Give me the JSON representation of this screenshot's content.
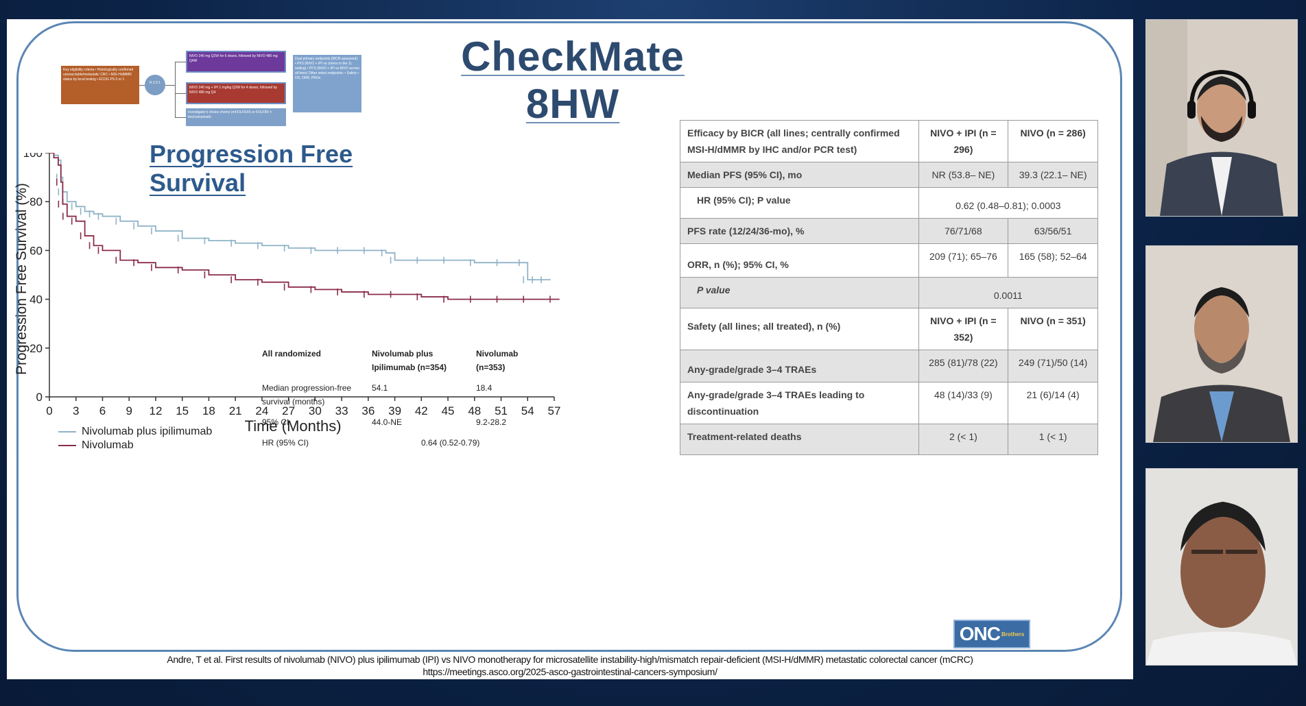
{
  "slide": {
    "title": "CheckMate 8HW",
    "diagram": {
      "eligibility": "Key eligibility criteria • Histologically confirmed unresectable/metastatic CRC • MSI-H/dMMR status by local testing • ECOG PS 0 or 1",
      "randomize": "R 2:2:1",
      "arm1": "NIVO 240 mg Q2W for 6 doses, followed by NIVO 480 mg Q4W",
      "arm2": "NIVO 240 mg + IPI 1 mg/kg Q3W for 4 doses, followed by NIVO 480 mg Q4",
      "arm3": "Investigator's choice chemo (mFOLFOX6 or FOLFIRI ± bev/cetuximab)",
      "endpoints": "Dual primary endpoints (BICR-assessed): • PFS (NIVO + IPI vs chemo in the 1L setting) • PFS (NIVO + IPI vs NIVO across all lines) Other select endpoints: • Safety • OS, ORR, PROs"
    },
    "km": {
      "title": "Progression Free Survival",
      "legend": [
        {
          "label": "Nivolumab plus ipilimumab",
          "color": "#8fb3c7"
        },
        {
          "label": "Nivolumab",
          "color": "#8a2c48"
        }
      ],
      "stats": {
        "header": [
          "All randomized",
          "Nivolumab plus Ipilimumab (n=354)",
          "Nivolumab (n=353)"
        ],
        "median_label": "Median progression-free survival (months)",
        "median_vals": [
          "54.1",
          "18.4"
        ],
        "ci_label": "95% CI",
        "ci_vals": [
          "44.0-NE",
          "9.2-28.2"
        ],
        "hr_label": "HR (95% CI)",
        "hr_val": "0.64 (0.52-0.79)"
      }
    },
    "table": {
      "header": {
        "label": "Efficacy by BICR (all lines; centrally confirmed MSI-H/dMMR by IHC and/or PCR test)",
        "col1": "NIVO + IPI (n = 296)",
        "col2": "NIVO (n = 286)"
      },
      "median_pfs": {
        "label": "Median PFS (95% CI), mo",
        "v1": "NR (53.8– NE)",
        "v2": "39.3 (22.1– NE)"
      },
      "hr": {
        "label": "HR (95% CI); P value",
        "value": "0.62 (0.48–0.81); 0.0003"
      },
      "pfs_rate": {
        "label": "PFS rate (12/24/36-mo), %",
        "v1": "76/71/68",
        "v2": "63/56/51"
      },
      "orr": {
        "label": "ORR, n (%); 95% CI, %",
        "v1": "209 (71); 65–76",
        "v2": "165 (58); 52–64"
      },
      "p_value": {
        "label": "P value",
        "value": "0.0011"
      },
      "safety_header": {
        "label": "Safety (all lines; all treated), n (%)",
        "col1": "NIVO + IPI (n = 352)",
        "col2": "NIVO (n = 351)"
      },
      "any_grade": {
        "label": "Any-grade/grade 3–4 TRAEs",
        "v1": "285 (81)/78 (22)",
        "v2": "249 (71)/50 (14)"
      },
      "discontinuation": {
        "label": "Any-grade/grade 3–4 TRAEs leading to discontinuation",
        "v1": "48 (14)/33 (9)",
        "v2": "21 (6)/14 (4)"
      },
      "deaths": {
        "label": "Treatment-related deaths",
        "v1": "2 (< 1)",
        "v2": "1 (< 1)"
      }
    },
    "citation": {
      "line1": "Andre, T et al. First results of nivolumab (NIVO) plus ipilimumab (IPI) vs NIVO monotherapy for microsatellite instability-high/mismatch repair-deficient (MSI-H/dMMR) metastatic colorectal cancer (mCRC)",
      "line2": "https://meetings.asco.org/2025-asco-gastrointestinal-cancers-symposium/"
    },
    "logo": {
      "text": "ONC",
      "sub": "Brothers"
    }
  },
  "chart_data": {
    "type": "line",
    "title": "Progression Free Survival",
    "xlabel": "Time (Months)",
    "ylabel": "Progression Free Survival (%)",
    "xlim": [
      0,
      57
    ],
    "ylim": [
      0,
      100
    ],
    "xticks": [
      0,
      3,
      6,
      9,
      12,
      15,
      18,
      21,
      24,
      27,
      30,
      33,
      36,
      39,
      42,
      45,
      48,
      51,
      54,
      57
    ],
    "yticks": [
      0,
      20,
      40,
      60,
      80,
      100
    ],
    "series": [
      {
        "name": "Nivolumab plus ipilimumab",
        "color": "#8fb3c7",
        "x": [
          0,
          0.5,
          1,
          1.3,
          1.5,
          2,
          3,
          4,
          5,
          6,
          8,
          10,
          12,
          15,
          18,
          21,
          24,
          27,
          30,
          33,
          36,
          38,
          39,
          42,
          45,
          48,
          51,
          53.5,
          54,
          55,
          56
        ],
        "y": [
          100,
          99,
          97,
          90,
          84,
          80,
          78,
          76,
          75,
          74,
          72,
          70,
          68,
          65,
          64,
          63,
          62,
          61,
          60,
          60,
          60,
          59,
          56,
          56,
          56,
          55,
          55,
          55,
          48,
          48,
          48
        ]
      },
      {
        "name": "Nivolumab",
        "color": "#8a2c48",
        "x": [
          0,
          0.5,
          1,
          1.3,
          1.5,
          2,
          3,
          4,
          5,
          6,
          8,
          10,
          12,
          15,
          18,
          21,
          24,
          27,
          30,
          33,
          36,
          39,
          42,
          45,
          48,
          51,
          54,
          57
        ],
        "y": [
          100,
          98,
          95,
          88,
          79,
          74,
          72,
          66,
          62,
          60,
          56,
          55,
          53,
          52,
          50,
          48,
          47,
          45,
          44,
          43,
          42,
          42,
          41,
          40,
          40,
          40,
          40,
          40
        ]
      }
    ],
    "legend": "bottom-left"
  },
  "colors": {
    "background": "#0c2347",
    "frame": "#5b86b4",
    "title": "#2d4a6f"
  }
}
